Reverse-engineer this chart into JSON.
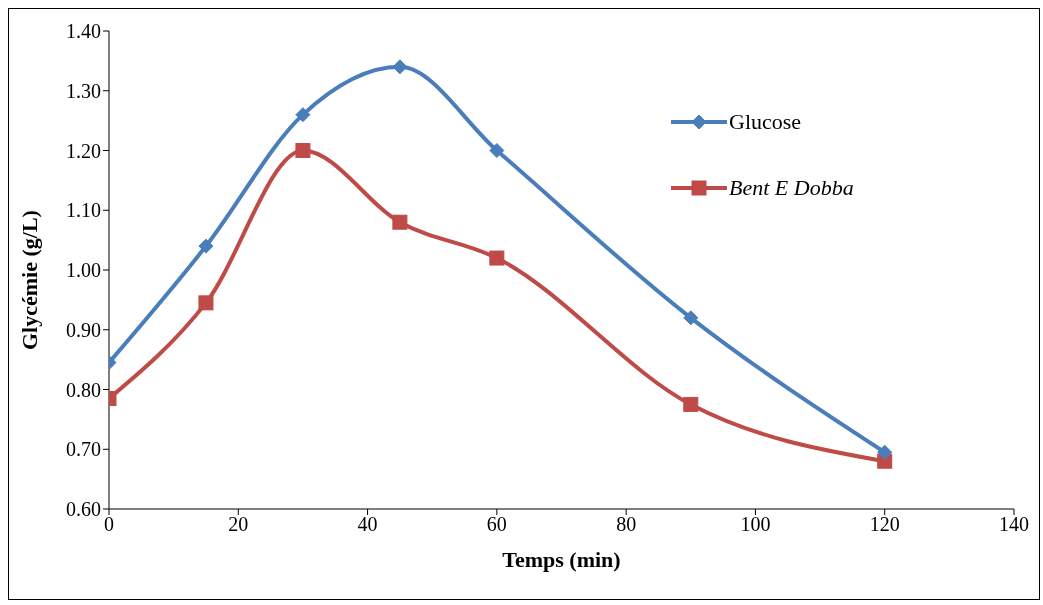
{
  "chart_data": {
    "type": "line",
    "xlabel": "Temps (min)",
    "ylabel": "Glycémie (g/L)",
    "x": [
      0,
      15,
      30,
      45,
      60,
      90,
      120
    ],
    "series": [
      {
        "name": "Glucose",
        "color": "#4a7ebb",
        "marker": "diamond",
        "values": [
          0.845,
          1.04,
          1.26,
          1.34,
          1.2,
          0.92,
          0.695
        ]
      },
      {
        "name": "Bent E Dobba",
        "color": "#be4b48",
        "marker": "square",
        "values": [
          0.785,
          0.945,
          1.2,
          1.08,
          1.02,
          0.775,
          0.68
        ]
      }
    ],
    "xlim": [
      0,
      140
    ],
    "xticks": [
      0,
      20,
      40,
      60,
      80,
      100,
      120,
      140
    ],
    "ylim": [
      0.6,
      1.4
    ],
    "yticks": [
      {
        "value": 0.6,
        "label": "0.60"
      },
      {
        "value": 0.7,
        "label": "0.70"
      },
      {
        "value": 0.8,
        "label": "0.80"
      },
      {
        "value": 0.9,
        "label": "0.90"
      },
      {
        "value": 1.0,
        "label": "1.00"
      },
      {
        "value": 1.1,
        "label": "1.10"
      },
      {
        "value": 1.2,
        "label": "1.20"
      },
      {
        "value": 1.3,
        "label": "1.30"
      },
      {
        "value": 1.4,
        "label": "1.40"
      }
    ],
    "grid": false,
    "legend": "top right",
    "line_style": "solid"
  }
}
